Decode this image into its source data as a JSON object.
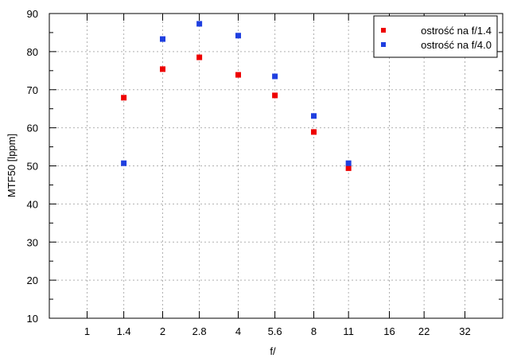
{
  "chart_data": {
    "type": "scatter",
    "title": "",
    "xlabel": "f/",
    "ylabel": "MTF50 [lppm]",
    "x_scale": "log",
    "xlim": [
      0.7071,
      45.25
    ],
    "ylim": [
      10,
      90
    ],
    "x_ticks": [
      1,
      1.4,
      2,
      2.8,
      4,
      5.6,
      8,
      11,
      16,
      22,
      32
    ],
    "x_tick_labels": [
      "1",
      "1.4",
      "2",
      "2.8",
      "4",
      "5.6",
      "8",
      "11",
      "16",
      "22",
      "32"
    ],
    "y_ticks": [
      10,
      20,
      30,
      40,
      50,
      60,
      70,
      80,
      90
    ],
    "grid": true,
    "legend_position": "top-right",
    "series": [
      {
        "name": "ostrość na f/1.4",
        "color": "#ee0000",
        "x": [
          1.4,
          2,
          2.8,
          4,
          5.6,
          8,
          11
        ],
        "y": [
          67.9,
          75.4,
          78.5,
          73.9,
          68.5,
          58.9,
          49.4
        ]
      },
      {
        "name": "ostrość na f/4.0",
        "color": "#1f3fe0",
        "x": [
          1.4,
          2,
          2.8,
          4,
          5.6,
          8,
          11
        ],
        "y": [
          50.7,
          83.3,
          87.3,
          84.2,
          73.5,
          63.1,
          50.7
        ]
      }
    ]
  }
}
